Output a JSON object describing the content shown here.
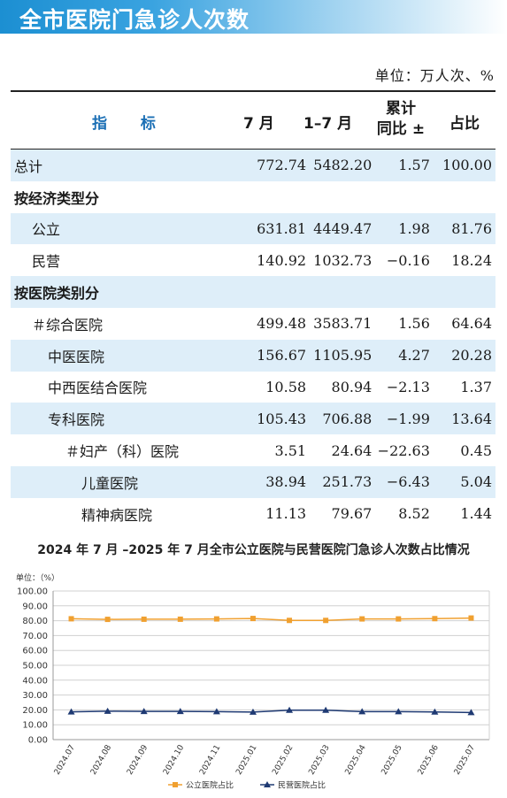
{
  "page_title": "全市医院门急诊人次数",
  "unit_label": "单位：万人次、%",
  "table": {
    "headers": {
      "indicator": "指 标",
      "month7": "7 月",
      "months1_7": "1–7 月",
      "cumulative_line1": "累计",
      "cumulative_line2": "同比 ±",
      "share": "占比"
    },
    "rows": [
      {
        "label": "总计",
        "level": 0,
        "type": "data",
        "shade": true,
        "m7": "772.74",
        "m17": "5482.20",
        "yoy": "1.57",
        "share": "100.00"
      },
      {
        "label": "按经济类型分",
        "level": 0,
        "type": "section",
        "shade": false
      },
      {
        "label": "公立",
        "level": 1,
        "type": "data",
        "shade": true,
        "m7": "631.81",
        "m17": "4449.47",
        "yoy": "1.98",
        "share": "81.76"
      },
      {
        "label": "民营",
        "level": 1,
        "type": "data",
        "shade": false,
        "m7": "140.92",
        "m17": "1032.73",
        "yoy": "−0.16",
        "share": "18.24"
      },
      {
        "label": "按医院类别分",
        "level": 0,
        "type": "section",
        "shade": true
      },
      {
        "label": "＃综合医院",
        "level": 1,
        "type": "data",
        "shade": false,
        "m7": "499.48",
        "m17": "3583.71",
        "yoy": "1.56",
        "share": "64.64"
      },
      {
        "label": "中医医院",
        "level": 2,
        "type": "data",
        "shade": true,
        "m7": "156.67",
        "m17": "1105.95",
        "yoy": "4.27",
        "share": "20.28"
      },
      {
        "label": "中西医结合医院",
        "level": 2,
        "type": "data",
        "shade": false,
        "m7": "10.58",
        "m17": "80.94",
        "yoy": "−2.13",
        "share": "1.37"
      },
      {
        "label": "专科医院",
        "level": 2,
        "type": "data",
        "shade": true,
        "m7": "105.43",
        "m17": "706.88",
        "yoy": "−1.99",
        "share": "13.64"
      },
      {
        "label": "＃妇产（科）医院",
        "level": 3,
        "type": "data",
        "shade": false,
        "m7": "3.51",
        "m17": "24.64",
        "yoy": "−22.63",
        "share": "0.45"
      },
      {
        "label": "儿童医院",
        "level": 4,
        "type": "data",
        "shade": true,
        "m7": "38.94",
        "m17": "251.73",
        "yoy": "−6.43",
        "share": "5.04"
      },
      {
        "label": "精神病医院",
        "level": 4,
        "type": "data",
        "shade": false,
        "m7": "11.13",
        "m17": "79.67",
        "yoy": "8.52",
        "share": "1.44"
      }
    ]
  },
  "chart_data": {
    "type": "line",
    "title": "2024 年 7 月 –2025 年 7 月全市公立医院与民营医院门急诊人次数占比情况",
    "ylabel": "单位：（%）",
    "ylim": [
      0,
      100
    ],
    "yticks": [
      "0.00",
      "10.00",
      "20.00",
      "30.00",
      "40.00",
      "50.00",
      "60.00",
      "70.00",
      "80.00",
      "90.00",
      "100.00"
    ],
    "categories": [
      "2024.07",
      "2024.08",
      "2024.09",
      "2024.10",
      "2024.11",
      "2025.01",
      "2025.02",
      "2025.03",
      "2025.04",
      "2025.05",
      "2025.06",
      "2025.07"
    ],
    "grid": true,
    "legend_position": "bottom",
    "series": [
      {
        "name": "公立医院占比",
        "color": "#f0a030",
        "marker": "square",
        "values": [
          81.3,
          80.9,
          81.0,
          81.0,
          81.2,
          81.5,
          80.2,
          80.2,
          81.2,
          81.2,
          81.4,
          81.8
        ]
      },
      {
        "name": "民营医院占比",
        "color": "#1f3a73",
        "marker": "triangle",
        "values": [
          18.7,
          19.1,
          19.0,
          19.0,
          18.8,
          18.5,
          19.8,
          19.8,
          18.8,
          18.8,
          18.6,
          18.2
        ]
      }
    ]
  }
}
